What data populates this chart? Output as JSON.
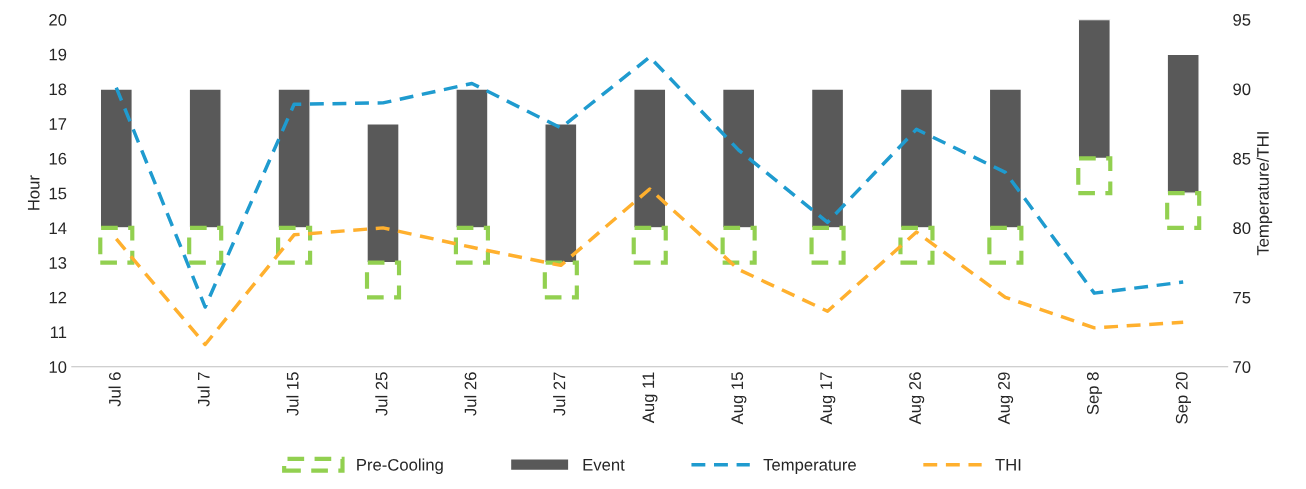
{
  "chart_data": {
    "type": "bar",
    "ylabel": "Hour",
    "y2label": "Temperature/THI",
    "categories": [
      "Jul 6",
      "Jul 7",
      "Jul 15",
      "Jul 25",
      "Jul 26",
      "Jul 27",
      "Aug 11",
      "Aug 15",
      "Aug 17",
      "Aug 26",
      "Aug 29",
      "Sep 8",
      "Sep 20"
    ],
    "series": [
      {
        "name": "Pre-Cooling",
        "color": "#92d050",
        "line_style": "dashed",
        "base": [
          13,
          13,
          13,
          12,
          13,
          12,
          13,
          13,
          13,
          13,
          13,
          15,
          14
        ],
        "values": [
          1,
          1,
          1,
          1,
          1,
          1,
          1,
          1,
          1,
          1,
          1,
          1,
          1
        ]
      },
      {
        "name": "Event",
        "color": "#595959",
        "base": [
          14,
          14,
          14,
          13,
          14,
          13,
          14,
          14,
          14,
          14,
          14,
          16,
          15
        ],
        "values": [
          4,
          4,
          4,
          4,
          4,
          4,
          4,
          4,
          4,
          4,
          4,
          4,
          4
        ]
      },
      {
        "name": "Temperature",
        "type": "line",
        "axis": "y2",
        "color": "#1f9bcf",
        "line_style": "dashed",
        "values": [
          90.1,
          74.3,
          88.9,
          89.0,
          90.4,
          87.2,
          92.3,
          85.6,
          80.4,
          87.1,
          84.0,
          75.3,
          76.1
        ]
      },
      {
        "name": "THI",
        "type": "line",
        "axis": "y2",
        "color": "#ffb02e",
        "line_style": "dashed",
        "values": [
          79.2,
          71.6,
          79.5,
          80.0,
          78.6,
          77.3,
          82.8,
          77.0,
          74.0,
          79.7,
          75.0,
          72.8,
          73.2
        ]
      }
    ],
    "ylim": [
      10,
      20
    ],
    "yticks": [
      10,
      11,
      12,
      13,
      14,
      15,
      16,
      17,
      18,
      19,
      20
    ],
    "y2lim": [
      70,
      95
    ],
    "y2ticks": [
      70,
      75,
      80,
      85,
      90,
      95
    ],
    "grid": false,
    "legend": "bottom"
  }
}
